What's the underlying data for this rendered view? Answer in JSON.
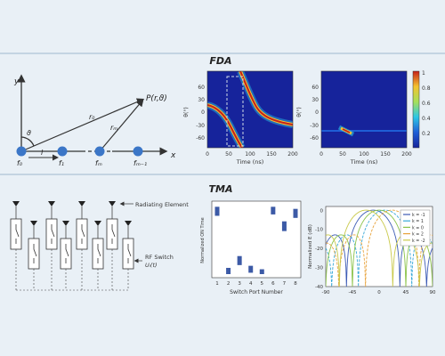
{
  "colors": {
    "background": "#e9f0f6",
    "rule": "#9eb7cd",
    "node": "#3b76c7",
    "line": "#333333"
  },
  "sections": {
    "fda_title": "FDA",
    "tma_title": "TMA"
  },
  "geometry_diagram": {
    "axis_x": "x",
    "axis_y": "y",
    "angle": "ϑ",
    "target_point": "P(r,ϑ)",
    "range_0": "r₀",
    "range_m": "rₘ",
    "spacing": "l",
    "node_labels": [
      "f₀",
      "f₁",
      "fₘ",
      "fₘ₋₁"
    ]
  },
  "fda_heatmaps": {
    "y_label": "θ(°)",
    "x_label": "Time (ns)",
    "y_ticks": [
      "60",
      "30",
      "0",
      "-30",
      "-60"
    ],
    "x_ticks": [
      "0",
      "50",
      "100",
      "150",
      "200"
    ],
    "colorbar_ticks": [
      "1",
      "0.8",
      "0.6",
      "0.4",
      "0.2"
    ]
  },
  "array_diagram": {
    "radiating_element_label": "Radiating Element",
    "rf_switch_label": "RF Switch",
    "switch_function_label": "Uᵢ(t)"
  },
  "chart_data": [
    {
      "type": "bar",
      "xlabel": "Switch Port Number",
      "ylabel": "Normalized ON Time",
      "categories": [
        "1",
        "2",
        "3",
        "4",
        "5",
        "6",
        "7",
        "8"
      ],
      "ranges": [
        [
          0.84,
          0.97
        ],
        [
          0.0,
          0.09
        ],
        [
          0.13,
          0.26
        ],
        [
          0.02,
          0.12
        ],
        [
          0.0,
          0.07
        ],
        [
          0.86,
          0.97
        ],
        [
          0.62,
          0.76
        ],
        [
          0.81,
          0.94
        ]
      ],
      "ylim": [
        0,
        1
      ],
      "grid": false
    },
    {
      "type": "line",
      "xlabel": "",
      "ylabel": "Normalized E (dB)",
      "x_ticks": [
        "-90",
        "-45",
        "0",
        "45",
        "90"
      ],
      "y_ticks": [
        "0",
        "-10",
        "-20",
        "-30",
        "-40"
      ],
      "xlim": [
        -90,
        90
      ],
      "ylim": [
        -40,
        2
      ],
      "legend_position": "top-right",
      "series": [
        {
          "name": "k = -1",
          "color": "#3c5bb5",
          "peak": -10
        },
        {
          "name": "k = 1",
          "color": "#37a8d8",
          "peak": 10
        },
        {
          "name": "k = 0",
          "color": "#8bc34a",
          "peak": 0
        },
        {
          "name": "k = 2",
          "color": "#e8a33b",
          "peak": 22
        },
        {
          "name": "k = -2",
          "color": "#c9c94a",
          "peak": -22
        }
      ]
    }
  ]
}
